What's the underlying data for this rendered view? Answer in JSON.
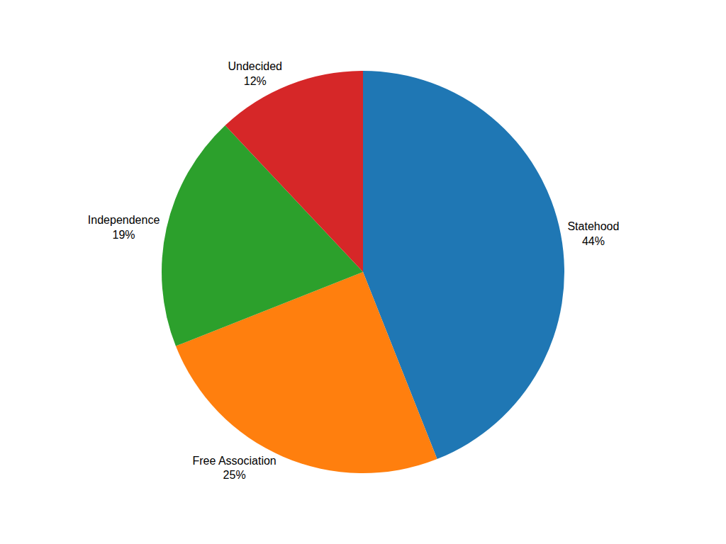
{
  "chart_data": {
    "type": "pie",
    "categories": [
      "Statehood",
      "Free Association",
      "Independence",
      "Undecided"
    ],
    "values": [
      44,
      25,
      19,
      12
    ],
    "value_labels": [
      "44%",
      "25%",
      "19%",
      "12%"
    ],
    "data_labels": true
  }
}
